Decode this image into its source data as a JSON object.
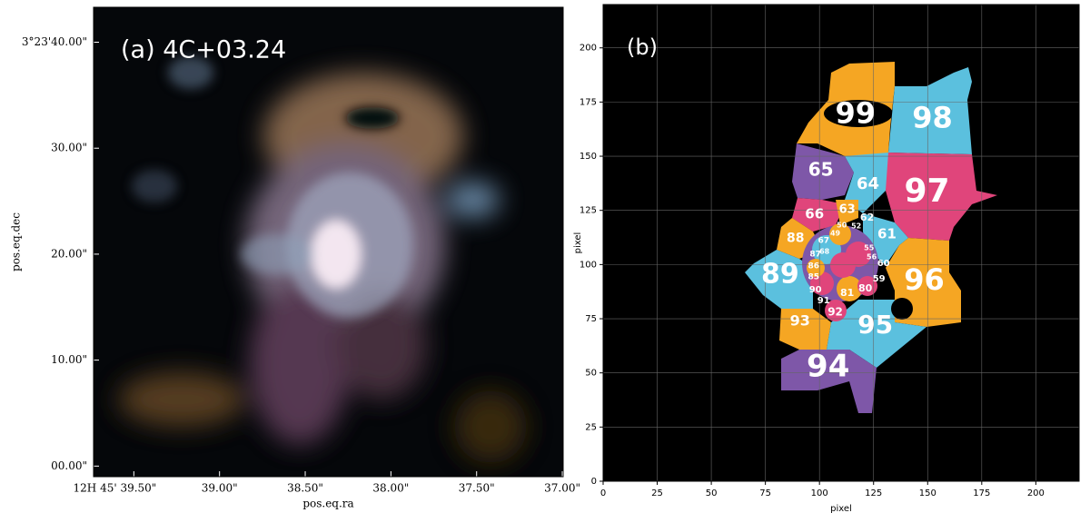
{
  "chart_data": [
    {
      "type": "image",
      "title": "(a) 4C+03.24",
      "xlabel": "pos.eq.ra",
      "ylabel": "pos.eq.dec",
      "xlim": [
        39.735,
        36.995
      ],
      "ylim": [
        -1.0,
        43.3
      ],
      "xticks": [
        {
          "value": 39.5,
          "label": "12H 45' 39.50\""
        },
        {
          "value": 39.0,
          "label": "39.00\""
        },
        {
          "value": 38.5,
          "label": "38.50\""
        },
        {
          "value": 38.0,
          "label": "38.00\""
        },
        {
          "value": 37.5,
          "label": "37.50\""
        },
        {
          "value": 37.0,
          "label": "37.00\""
        }
      ],
      "yticks": [
        {
          "value": 0,
          "label": "00.00\""
        },
        {
          "value": 10,
          "label": "10.00\""
        },
        {
          "value": 20,
          "label": "20.00\""
        },
        {
          "value": 30,
          "label": "30.00\""
        },
        {
          "value": 40,
          "label": "3°23'40.00\""
        }
      ]
    },
    {
      "type": "segmentation",
      "title": "(b)",
      "xlabel": "pixel",
      "ylabel": "pixel",
      "xlim": [
        0,
        220
      ],
      "ylim": [
        0,
        220
      ],
      "grid": true,
      "xticks": [
        0,
        25,
        50,
        75,
        100,
        125,
        150,
        175,
        200
      ],
      "yticks": [
        0,
        25,
        50,
        75,
        100,
        125,
        150,
        175,
        200
      ],
      "regions": [
        {
          "label": "99",
          "x": 116.6,
          "y": 169
        },
        {
          "label": "98",
          "x": 152.2,
          "y": 166.9
        },
        {
          "label": "65",
          "x": 100.6,
          "y": 143.4
        },
        {
          "label": "64",
          "x": 122.4,
          "y": 137.1
        },
        {
          "label": "97",
          "x": 149.7,
          "y": 133.3
        },
        {
          "label": "63",
          "x": 112.8,
          "y": 125.4
        },
        {
          "label": "66",
          "x": 97.7,
          "y": 123.3
        },
        {
          "label": "62",
          "x": 122,
          "y": 121.6
        },
        {
          "label": "61",
          "x": 131.2,
          "y": 114
        },
        {
          "label": "88",
          "x": 88.9,
          "y": 112
        },
        {
          "label": "89",
          "x": 81.8,
          "y": 95.2
        },
        {
          "label": "96",
          "x": 148.4,
          "y": 92.2
        },
        {
          "label": "93",
          "x": 91,
          "y": 73.8
        },
        {
          "label": "95",
          "x": 125.8,
          "y": 71.7
        },
        {
          "label": "94",
          "x": 104,
          "y": 52.4
        },
        {
          "label": "60",
          "x": 129.6,
          "y": 100.6
        },
        {
          "label": "59",
          "x": 127.5,
          "y": 93.5
        },
        {
          "label": "80",
          "x": 121.2,
          "y": 88.9
        },
        {
          "label": "81",
          "x": 112.8,
          "y": 86.8
        },
        {
          "label": "92",
          "x": 107.3,
          "y": 78
        },
        {
          "label": "91",
          "x": 101.9,
          "y": 83.4
        },
        {
          "label": "90",
          "x": 98.1,
          "y": 88.5
        },
        {
          "label": "85",
          "x": 97.3,
          "y": 94.3
        },
        {
          "label": "86",
          "x": 97.3,
          "y": 99.4
        },
        {
          "label": "87",
          "x": 98.1,
          "y": 104.8
        },
        {
          "label": "67",
          "x": 101.9,
          "y": 111.1
        },
        {
          "label": "68",
          "x": 102.3,
          "y": 106.1
        },
        {
          "label": "50",
          "x": 110.3,
          "y": 118.2
        },
        {
          "label": "52",
          "x": 117,
          "y": 117.8
        },
        {
          "label": "49",
          "x": 107.3,
          "y": 114.5
        },
        {
          "label": "55",
          "x": 122.9,
          "y": 107.8
        },
        {
          "label": "56",
          "x": 124.1,
          "y": 103.6
        }
      ]
    }
  ]
}
